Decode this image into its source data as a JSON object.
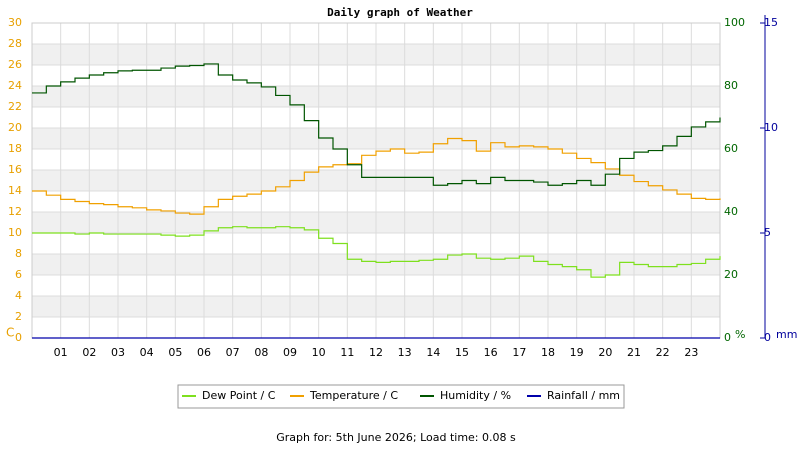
{
  "chart_data": {
    "type": "line",
    "title": "Daily graph of Weather",
    "footer": "Graph for: 5th June 2026; Load time: 0.08 s",
    "y_label": "C",
    "y2_label": "%",
    "y3_label": "mm",
    "x": [
      0,
      0.5,
      1,
      1.5,
      2,
      2.5,
      3,
      3.5,
      4,
      4.5,
      5,
      5.5,
      6,
      6.5,
      7,
      7.5,
      8,
      8.5,
      9,
      9.5,
      10,
      10.5,
      11,
      11.5,
      12,
      12.5,
      13,
      13.5,
      14,
      14.5,
      15,
      15.5,
      16,
      16.5,
      17,
      17.5,
      18,
      18.5,
      19,
      19.5,
      20,
      20.5,
      21,
      21.5,
      22,
      22.5,
      23,
      23.5,
      24
    ],
    "xlim": [
      0,
      24
    ],
    "xticks": [
      {
        "value": 1,
        "label": "01"
      },
      {
        "value": 2,
        "label": "02"
      },
      {
        "value": 3,
        "label": "03"
      },
      {
        "value": 4,
        "label": "04"
      },
      {
        "value": 5,
        "label": "05"
      },
      {
        "value": 6,
        "label": "06"
      },
      {
        "value": 7,
        "label": "07"
      },
      {
        "value": 8,
        "label": "08"
      },
      {
        "value": 9,
        "label": "09"
      },
      10,
      11,
      12,
      13,
      14,
      15,
      16,
      17,
      18,
      19,
      20,
      21,
      22,
      23
    ],
    "ylim": [
      0,
      30
    ],
    "yticks": [
      0,
      2,
      4,
      6,
      8,
      10,
      12,
      14,
      16,
      18,
      20,
      22,
      24,
      26,
      28,
      30
    ],
    "y2lim": [
      0,
      100
    ],
    "y2ticks": [
      0,
      20,
      40,
      60,
      80,
      100
    ],
    "y3lim": [
      0,
      15
    ],
    "y3ticks": [
      0,
      5,
      10,
      15
    ],
    "grid": true,
    "series": [
      {
        "name": "Dew Point / C",
        "color": "#7ee01e",
        "axis": "y",
        "values": [
          10.0,
          10.0,
          10.0,
          9.9,
          10.0,
          9.9,
          9.9,
          9.9,
          9.9,
          9.8,
          9.7,
          9.8,
          10.2,
          10.5,
          10.6,
          10.5,
          10.5,
          10.6,
          10.5,
          10.3,
          9.5,
          9.0,
          7.5,
          7.3,
          7.2,
          7.3,
          7.3,
          7.4,
          7.5,
          7.9,
          8.0,
          7.6,
          7.5,
          7.6,
          7.8,
          7.3,
          7.0,
          6.8,
          6.5,
          5.8,
          6.0,
          7.2,
          7.0,
          6.8,
          6.8,
          7.0,
          7.1,
          7.5,
          7.8
        ]
      },
      {
        "name": "Temperature / C",
        "color": "#f0a000",
        "axis": "y",
        "values": [
          14.0,
          13.6,
          13.2,
          13.0,
          12.8,
          12.7,
          12.5,
          12.4,
          12.2,
          12.1,
          11.9,
          11.8,
          12.5,
          13.2,
          13.5,
          13.7,
          14.0,
          14.4,
          15.0,
          15.8,
          16.3,
          16.5,
          16.6,
          17.4,
          17.8,
          18.0,
          17.6,
          17.7,
          18.5,
          19.0,
          18.8,
          17.8,
          18.6,
          18.2,
          18.3,
          18.2,
          18.0,
          17.6,
          17.1,
          16.7,
          16.1,
          15.5,
          14.9,
          14.5,
          14.1,
          13.7,
          13.3,
          13.2,
          13.3
        ]
      },
      {
        "name": "Humidity / %",
        "color": "#005500",
        "axis": "y2",
        "values": [
          77.8,
          80,
          81.3,
          82.5,
          83.5,
          84.2,
          84.8,
          85,
          85,
          85.7,
          86.3,
          86.5,
          87,
          83.5,
          81.9,
          81,
          79.7,
          77,
          74,
          69,
          63.5,
          60,
          55,
          51,
          51,
          51,
          51,
          51,
          48.5,
          49,
          50,
          49,
          51,
          50,
          50,
          49.5,
          48.5,
          49,
          50,
          48.5,
          52,
          57,
          59,
          59.5,
          61,
          64,
          67,
          68.6,
          70
        ]
      },
      {
        "name": "Rainfall / mm",
        "color": "#0000aa",
        "axis": "y3",
        "values": [
          0,
          0,
          0,
          0,
          0,
          0,
          0,
          0,
          0,
          0,
          0,
          0,
          0,
          0,
          0,
          0,
          0,
          0,
          0,
          0,
          0,
          0,
          0,
          0,
          0,
          0,
          0,
          0,
          0,
          0,
          0,
          0,
          0,
          0,
          0,
          0,
          0,
          0,
          0,
          0,
          0,
          0,
          0,
          0,
          0,
          0,
          0,
          0,
          0
        ]
      }
    ]
  }
}
